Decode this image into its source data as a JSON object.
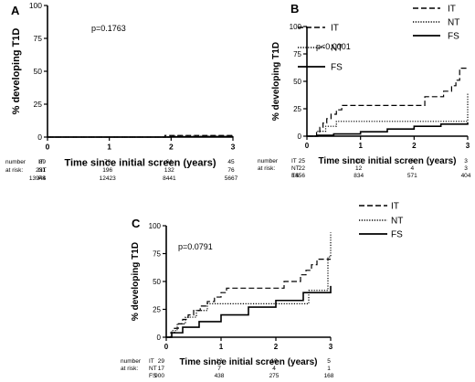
{
  "chart_data": [
    {
      "panel": "A",
      "type": "line",
      "ylabel": "% developing T1D",
      "xlabel": "Time since initial screen (years)",
      "xlim": [
        0,
        3
      ],
      "ylim": [
        0,
        100
      ],
      "xticks": [
        "0",
        "1",
        "2",
        "3"
      ],
      "yticks": [
        "0",
        "25",
        "50",
        "75",
        "100"
      ],
      "pvalue": "p=0.1763",
      "legend_position": "top-right",
      "series": [
        {
          "name": "IT",
          "style": "dashed",
          "x": [
            0,
            1.55,
            1.9,
            3.0
          ],
          "y": [
            0,
            0,
            1.2,
            1.2
          ]
        },
        {
          "name": "NT",
          "style": "dotted",
          "x": [
            0,
            1.6,
            1.95,
            3.0
          ],
          "y": [
            0,
            0,
            0.6,
            0.6
          ]
        },
        {
          "name": "FS",
          "style": "solid",
          "x": [
            0,
            1.5,
            2.0,
            2.5,
            3.0
          ],
          "y": [
            0,
            0,
            0.2,
            0.4,
            0.5
          ]
        }
      ],
      "risk_table": {
        "header": [
          "number",
          "at risk:"
        ],
        "rows": [
          {
            "label": "IT",
            "values": [
              "89",
              "79",
              "61",
              "45"
            ]
          },
          {
            "label": "NT",
            "values": [
              "231",
              "196",
              "132",
              "76"
            ]
          },
          {
            "label": "FS",
            "values": [
              "13944",
              "12423",
              "8441",
              "5667"
            ]
          }
        ]
      }
    },
    {
      "panel": "B",
      "type": "line",
      "ylabel": "% developing T1D",
      "xlabel": "Time since initial screen (years)",
      "xlim": [
        0,
        3
      ],
      "ylim": [
        0,
        100
      ],
      "xticks": [
        "0",
        "1",
        "2",
        "3"
      ],
      "yticks": [
        "0",
        "25",
        "50",
        "75",
        "100"
      ],
      "pvalue": "p<0.0001",
      "legend_position": "top-right",
      "series": [
        {
          "name": "IT",
          "style": "dashed",
          "x": [
            0,
            0.18,
            0.24,
            0.3,
            0.37,
            0.45,
            0.55,
            0.65,
            1.7,
            2.2,
            2.5,
            2.55,
            2.7,
            2.78,
            2.85,
            3.0
          ],
          "y": [
            0,
            4,
            8,
            12,
            16,
            20,
            24,
            28,
            28,
            36,
            36,
            41,
            46,
            51,
            62,
            62
          ]
        },
        {
          "name": "NT",
          "style": "dotted",
          "x": [
            0,
            0.18,
            0.35,
            0.55,
            1.9,
            2.95,
            3.0
          ],
          "y": [
            0,
            4.5,
            9,
            13.5,
            13.5,
            13.5,
            40
          ]
        },
        {
          "name": "FS",
          "style": "solid",
          "x": [
            0,
            0.2,
            0.5,
            1.0,
            1.5,
            2.0,
            2.5,
            3.0
          ],
          "y": [
            0,
            0.8,
            2,
            4,
            6.5,
            9,
            11,
            12.5
          ]
        }
      ],
      "risk_table": {
        "header": [
          "number",
          "at risk:"
        ],
        "rows": [
          {
            "label": "IT",
            "values": [
              "25",
              "10",
              "6",
              "3"
            ]
          },
          {
            "label": "NT",
            "values": [
              "22",
              "12",
              "4",
              "3"
            ]
          },
          {
            "label": "FS",
            "values": [
              "1456",
              "834",
              "571",
              "404"
            ]
          }
        ]
      }
    },
    {
      "panel": "C",
      "type": "line",
      "ylabel": "% developing T1D",
      "xlabel": "Time since initial screen (years)",
      "xlim": [
        0,
        3
      ],
      "ylim": [
        0,
        100
      ],
      "xticks": [
        "0",
        "1",
        "2",
        "3"
      ],
      "yticks": [
        "0",
        "25",
        "50",
        "75",
        "100"
      ],
      "pvalue": "p=0.0791",
      "legend_position": "top-right",
      "series": [
        {
          "name": "IT",
          "style": "dashed",
          "x": [
            0,
            0.08,
            0.15,
            0.22,
            0.3,
            0.4,
            0.5,
            0.62,
            0.75,
            0.88,
            1.0,
            1.1,
            1.3,
            1.5,
            2.0,
            2.15,
            2.3,
            2.45,
            2.55,
            2.65,
            2.75,
            3.0
          ],
          "y": [
            0,
            4,
            8,
            12,
            16,
            20,
            24,
            28,
            32,
            36,
            40,
            44,
            44,
            44,
            44,
            50,
            50,
            56,
            60,
            65,
            70,
            70
          ]
        },
        {
          "name": "NT",
          "style": "dotted",
          "x": [
            0,
            0.1,
            0.2,
            0.35,
            0.55,
            0.75,
            0.9,
            2.4,
            2.6,
            2.95,
            3.0
          ],
          "y": [
            0,
            6,
            12,
            18,
            24,
            30,
            30,
            30,
            42,
            72,
            94
          ]
        },
        {
          "name": "FS",
          "style": "solid",
          "x": [
            0,
            0.1,
            0.3,
            0.6,
            1.0,
            1.5,
            2.0,
            2.5,
            3.0
          ],
          "y": [
            0,
            4,
            9,
            14,
            20,
            27,
            33,
            40,
            46
          ]
        }
      ],
      "risk_table": {
        "header": [
          "number",
          "at risk:"
        ],
        "rows": [
          {
            "label": "IT",
            "values": [
              "29",
              "12",
              "10",
              "5"
            ]
          },
          {
            "label": "NT",
            "values": [
              "17",
              "7",
              "4",
              "1"
            ]
          },
          {
            "label": "FS",
            "values": [
              "900",
              "438",
              "275",
              "168"
            ]
          }
        ]
      }
    }
  ]
}
